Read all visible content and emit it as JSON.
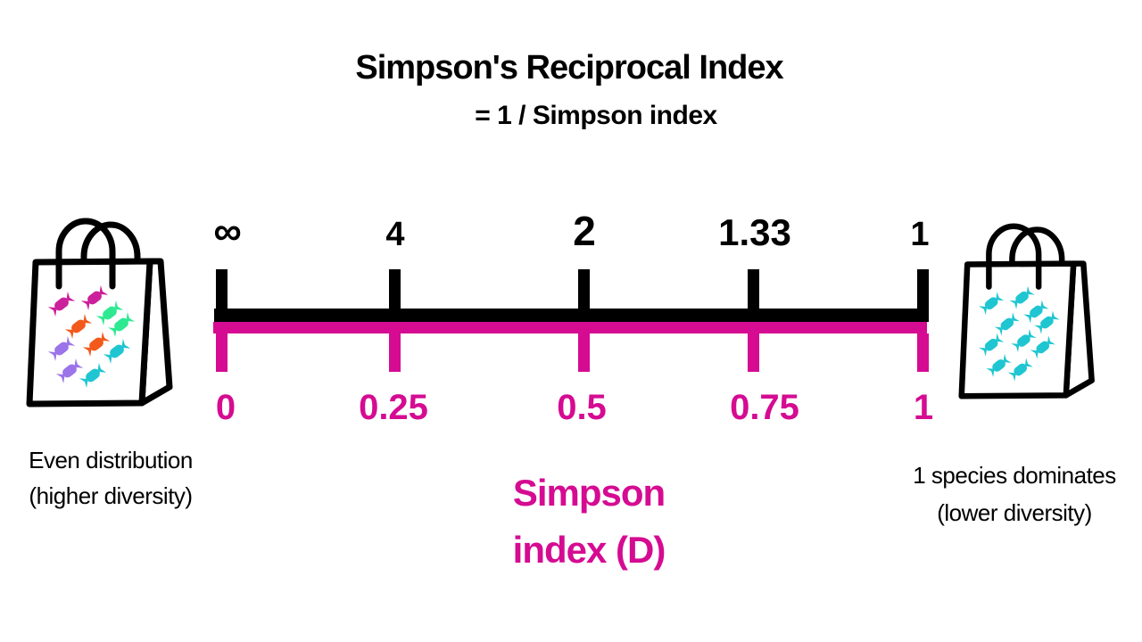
{
  "title": {
    "line1": "Simpson's Reciprocal Index",
    "line2": "= 1 / Simpson index"
  },
  "colors": {
    "black": "#000000",
    "scale_pink": "#d50b92",
    "candy": {
      "magenta": "#cb1f9c",
      "orange": "#f2591b",
      "green": "#2fe992",
      "purple": "#9c74e9",
      "cyan": "#1fc6d1"
    }
  },
  "scale": {
    "reciprocal_labels": [
      "∞",
      "4",
      "2",
      "1.33",
      "1"
    ],
    "simpson_labels": [
      "0",
      "0.25",
      "0.5",
      "0.75",
      "1"
    ],
    "axis_label_line1": "Simpson",
    "axis_label_line2": "index (D)"
  },
  "bags": {
    "left": {
      "caption_line1": "Even distribution",
      "caption_line2": "(higher diversity)",
      "candies": [
        "magenta",
        "magenta",
        "green",
        "green",
        "orange",
        "orange",
        "purple",
        "purple",
        "cyan",
        "cyan"
      ]
    },
    "right": {
      "caption_line1": "1 species dominates",
      "caption_line2": "(lower diversity)",
      "candies": [
        "cyan",
        "cyan",
        "cyan",
        "cyan",
        "cyan",
        "cyan",
        "cyan",
        "cyan",
        "cyan",
        "cyan"
      ]
    }
  }
}
